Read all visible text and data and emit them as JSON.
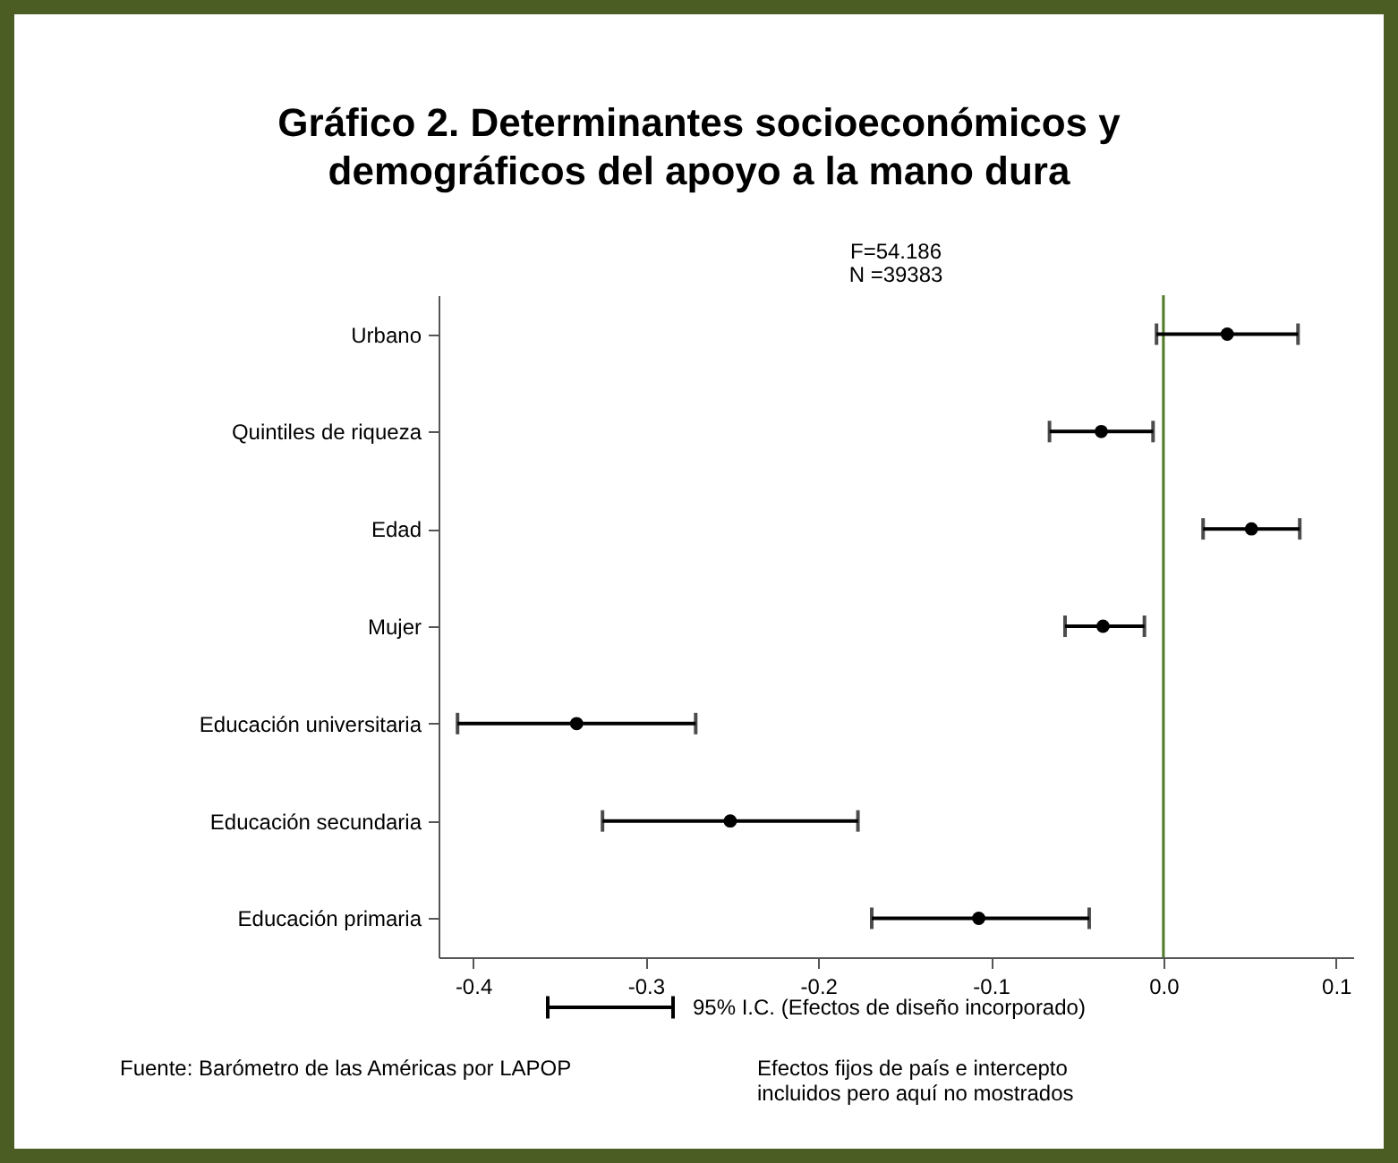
{
  "chart_data": {
    "type": "scatter",
    "title": "Gráfico 2. Determinantes socioeconómicos y\ndemográficos del apoyo a la mano dura",
    "orientation": "horizontal",
    "categories": [
      "Urbano",
      "Quintiles de riqueza",
      "Edad",
      "Mujer",
      "Educación universitaria",
      "Educación secundaria",
      "Educación primaria"
    ],
    "series": [
      {
        "name": "95% I.C. (Efectos de diseño incorporado)",
        "color": "#000000",
        "values": [
          0.037,
          -0.036,
          0.051,
          -0.035,
          -0.34,
          -0.251,
          -0.107
        ],
        "errors": [
          [
            -0.004,
            0.078
          ],
          [
            -0.066,
            -0.006
          ],
          [
            0.023,
            0.079
          ],
          [
            -0.057,
            -0.011
          ],
          [
            -0.409,
            -0.271
          ],
          [
            -0.325,
            -0.177
          ],
          [
            -0.169,
            -0.043
          ]
        ]
      }
    ],
    "xlim": [
      -0.42,
      0.11
    ],
    "xticks": [
      -0.4,
      -0.3,
      -0.2,
      -0.1,
      {
        "value": 0,
        "label": "0.0"
      },
      0.1
    ],
    "ref_lines": [
      {
        "axis": "x",
        "value": 0,
        "color": "#4f7a28"
      }
    ],
    "marker": "circle",
    "grid": false,
    "legend": "bottom",
    "annotations": [
      "F=54.186",
      "N =39383",
      "Fuente: Barómetro de las Américas por LAPOP",
      "Efectos fijos de país e intercepto\nincluidos pero aquí no mostrados"
    ]
  }
}
